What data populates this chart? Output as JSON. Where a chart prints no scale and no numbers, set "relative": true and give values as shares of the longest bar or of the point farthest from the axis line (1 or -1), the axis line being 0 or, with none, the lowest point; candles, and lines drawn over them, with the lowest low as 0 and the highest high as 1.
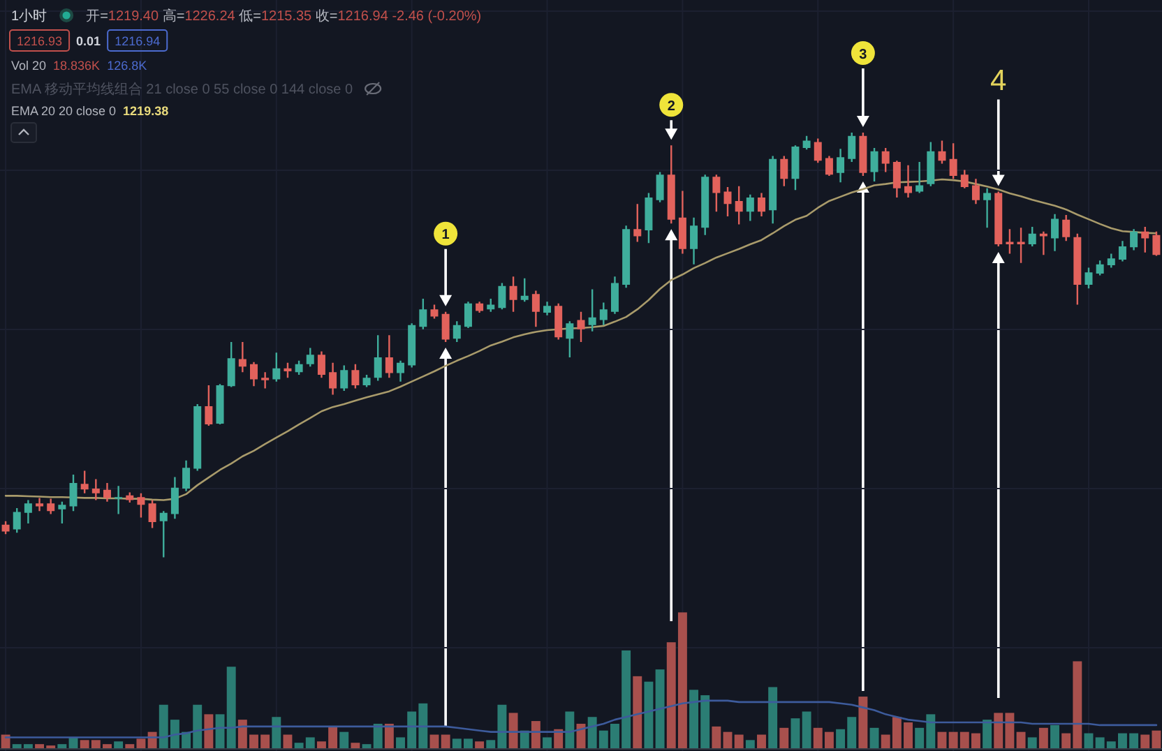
{
  "chart_data": [
    {
      "type": "candlestick",
      "title": "1小时",
      "relative": true,
      "grid": true,
      "categories": [
        null,
        null,
        null,
        null,
        null,
        null,
        null,
        null,
        null,
        null,
        null,
        null,
        null,
        null,
        null,
        null,
        null,
        null,
        null,
        null,
        null,
        null,
        null,
        null,
        null,
        null,
        null,
        null,
        null,
        null,
        null,
        null,
        null,
        null,
        null,
        null,
        null,
        null,
        null,
        null,
        null,
        null,
        null,
        null,
        null,
        null,
        null,
        null,
        null,
        null,
        null,
        null,
        null,
        null,
        null,
        null,
        null,
        null,
        null,
        null,
        null,
        null,
        null,
        null,
        null,
        null,
        null,
        null,
        null,
        null,
        null,
        null,
        null,
        null,
        null,
        null,
        null,
        null,
        null,
        null,
        null,
        null,
        null,
        null,
        null,
        null,
        null,
        null,
        null,
        null,
        null,
        null,
        null,
        null,
        null,
        null,
        null,
        null,
        null,
        null,
        null,
        null,
        null
      ],
      "ohlc": [
        [
          0.077,
          0.085,
          0.055,
          0.061
        ],
        [
          0.066,
          0.116,
          0.058,
          0.107
        ],
        [
          0.105,
          0.135,
          0.08,
          0.127
        ],
        [
          0.127,
          0.14,
          0.109,
          0.12
        ],
        [
          0.127,
          0.138,
          0.102,
          0.109
        ],
        [
          0.113,
          0.131,
          0.08,
          0.124
        ],
        [
          0.12,
          0.195,
          0.109,
          0.175
        ],
        [
          0.173,
          0.204,
          0.151,
          0.16
        ],
        [
          0.162,
          0.184,
          0.135,
          0.151
        ],
        [
          0.159,
          0.175,
          0.131,
          0.14
        ],
        [
          0.138,
          0.168,
          0.102,
          0.142
        ],
        [
          0.146,
          0.153,
          0.129,
          0.135
        ],
        [
          0.142,
          0.151,
          0.094,
          0.124
        ],
        [
          0.127,
          0.135,
          0.069,
          0.083
        ],
        [
          0.085,
          0.109,
          0,
          0.105
        ],
        [
          0.102,
          0.189,
          0.091,
          0.164
        ],
        [
          0.162,
          0.228,
          0.156,
          0.211
        ],
        [
          0.209,
          0.361,
          0.204,
          0.356
        ],
        [
          0.356,
          0.405,
          0.31,
          0.313
        ],
        [
          0.315,
          0.408,
          0.313,
          0.405
        ],
        [
          0.403,
          0.507,
          0.401,
          0.469
        ],
        [
          0.467,
          0.507,
          0.436,
          0.449
        ],
        [
          0.455,
          0.46,
          0.403,
          0.419
        ],
        [
          0.423,
          0.436,
          0.398,
          0.417
        ],
        [
          0.419,
          0.482,
          0.414,
          0.445
        ],
        [
          0.445,
          0.458,
          0.423,
          0.438
        ],
        [
          0.436,
          0.463,
          0.43,
          0.455
        ],
        [
          0.455,
          0.493,
          0.449,
          0.477
        ],
        [
          0.477,
          0.485,
          0.423,
          0.43
        ],
        [
          0.436,
          0.458,
          0.383,
          0.398
        ],
        [
          0.398,
          0.452,
          0.392,
          0.441
        ],
        [
          0.441,
          0.455,
          0.398,
          0.405
        ],
        [
          0.405,
          0.43,
          0.401,
          0.423
        ],
        [
          0.423,
          0.523,
          0.416,
          0.471
        ],
        [
          0.471,
          0.523,
          0.423,
          0.434
        ],
        [
          0.434,
          0.463,
          0.414,
          0.458
        ],
        [
          0.452,
          0.551,
          0.447,
          0.547
        ],
        [
          0.543,
          0.609,
          0.537,
          0.584
        ],
        [
          0.584,
          0.595,
          0.562,
          0.567
        ],
        [
          0.573,
          0.578,
          0.507,
          0.513
        ],
        [
          0.515,
          0.556,
          0.507,
          0.547
        ],
        [
          0.543,
          0.602,
          0.54,
          0.598
        ],
        [
          0.598,
          0.602,
          0.576,
          0.58
        ],
        [
          0.584,
          0.609,
          0.578,
          0.595
        ],
        [
          0.587,
          0.646,
          0.584,
          0.639
        ],
        [
          0.639,
          0.661,
          0.578,
          0.606
        ],
        [
          0.606,
          0.657,
          0.602,
          0.616
        ],
        [
          0.62,
          0.628,
          0.543,
          0.578
        ],
        [
          0.576,
          0.602,
          0.57,
          0.592
        ],
        [
          0.592,
          0.598,
          0.513,
          0.518
        ],
        [
          0.515,
          0.556,
          0.471,
          0.551
        ],
        [
          0.559,
          0.578,
          0.507,
          0.537
        ],
        [
          0.547,
          0.631,
          0.532,
          0.565
        ],
        [
          0.559,
          0.6,
          0.547,
          0.584
        ],
        [
          0.578,
          0.661,
          0.573,
          0.646
        ],
        [
          0.642,
          0.781,
          0.635,
          0.773
        ],
        [
          0.773,
          0.832,
          0.743,
          0.756
        ],
        [
          0.77,
          0.858,
          0.74,
          0.847
        ],
        [
          0.841,
          0.907,
          0.836,
          0.901
        ],
        [
          0.901,
          0.97,
          0.786,
          0.795
        ],
        [
          0.8,
          0.863,
          0.715,
          0.726
        ],
        [
          0.726,
          0.8,
          0.69,
          0.781
        ],
        [
          0.776,
          0.901,
          0.759,
          0.896
        ],
        [
          0.896,
          0.901,
          0.814,
          0.858
        ],
        [
          0.861,
          0.872,
          0.803,
          0.832
        ],
        [
          0.839,
          0.874,
          0.784,
          0.814
        ],
        [
          0.814,
          0.854,
          0.792,
          0.847
        ],
        [
          0.847,
          0.858,
          0.803,
          0.814
        ],
        [
          0.817,
          0.945,
          0.786,
          0.938
        ],
        [
          0.938,
          0.945,
          0.874,
          0.891
        ],
        [
          0.891,
          0.97,
          0.865,
          0.967
        ],
        [
          0.964,
          0.992,
          0.96,
          0.981
        ],
        [
          0.978,
          0.986,
          0.929,
          0.934
        ],
        [
          0.94,
          0.945,
          0.898,
          0.901
        ],
        [
          0.905,
          0.962,
          0.883,
          0.942
        ],
        [
          0.938,
          1,
          0.931,
          0.992
        ],
        [
          0.992,
          1,
          0.898,
          0.905
        ],
        [
          0.907,
          0.964,
          0.885,
          0.956
        ],
        [
          0.956,
          0.964,
          0.907,
          0.927
        ],
        [
          0.931,
          0.934,
          0.847,
          0.869
        ],
        [
          0.874,
          0.923,
          0.847,
          0.858
        ],
        [
          0.861,
          0.931,
          0.858,
          0.876
        ],
        [
          0.879,
          0.978,
          0.874,
          0.956
        ],
        [
          0.956,
          0.981,
          0.927,
          0.934
        ],
        [
          0.938,
          0.975,
          0.891,
          0.898
        ],
        [
          0.901,
          0.912,
          0.869,
          0.872
        ],
        [
          0.876,
          0.891,
          0.832,
          0.841
        ],
        [
          0.841,
          0.869,
          0.776,
          0.858
        ],
        [
          0.858,
          0.861,
          0.732,
          0.737
        ],
        [
          0.743,
          0.773,
          0.715,
          0.737
        ],
        [
          0.743,
          0.776,
          0.693,
          0.737
        ],
        [
          0.737,
          0.778,
          0.732,
          0.762
        ],
        [
          0.762,
          0.767,
          0.712,
          0.756
        ],
        [
          0.751,
          0.808,
          0.721,
          0.797
        ],
        [
          0.795,
          0.806,
          0.745,
          0.754
        ],
        [
          0.754,
          0.762,
          0.595,
          0.642
        ],
        [
          0.642,
          0.682,
          0.633,
          0.671
        ],
        [
          0.668,
          0.699,
          0.664,
          0.69
        ],
        [
          0.688,
          0.715,
          0.682,
          0.704
        ],
        [
          0.701,
          0.745,
          0.697,
          0.732
        ],
        [
          0.73,
          0.773,
          0.723,
          0.767
        ],
        [
          0.767,
          0.778,
          0.718,
          0.751
        ],
        [
          0.759,
          0.767,
          0.71,
          0.712
        ]
      ],
      "colors": [
        "#e2625c",
        "#3fae9c",
        "#3fae9c",
        "#e2625c",
        "#e2625c",
        "#3fae9c",
        "#3fae9c",
        "#e2625c",
        "#e2625c",
        "#e2625c",
        "#3fae9c",
        "#e2625c",
        "#e2625c",
        "#e2625c",
        "#3fae9c",
        "#3fae9c",
        "#3fae9c",
        "#3fae9c",
        "#e2625c",
        "#3fae9c",
        "#3fae9c",
        "#e2625c",
        "#e2625c",
        "#e2625c",
        "#3fae9c",
        "#e2625c",
        "#3fae9c",
        "#3fae9c",
        "#e2625c",
        "#e2625c",
        "#3fae9c",
        "#e2625c",
        "#3fae9c",
        "#3fae9c",
        "#e2625c",
        "#3fae9c",
        "#3fae9c",
        "#3fae9c",
        "#e2625c",
        "#e2625c",
        "#3fae9c",
        "#3fae9c",
        "#e2625c",
        "#3fae9c",
        "#3fae9c",
        "#e2625c",
        "#3fae9c",
        "#e2625c",
        "#3fae9c",
        "#e2625c",
        "#3fae9c",
        "#e2625c",
        "#3fae9c",
        "#3fae9c",
        "#3fae9c",
        "#3fae9c",
        "#e2625c",
        "#3fae9c",
        "#3fae9c",
        "#e2625c",
        "#e2625c",
        "#3fae9c",
        "#3fae9c",
        "#e2625c",
        "#e2625c",
        "#e2625c",
        "#3fae9c",
        "#e2625c",
        "#3fae9c",
        "#e2625c",
        "#3fae9c",
        "#3fae9c",
        "#e2625c",
        "#e2625c",
        "#3fae9c",
        "#3fae9c",
        "#e2625c",
        "#3fae9c",
        "#e2625c",
        "#e2625c",
        "#e2625c",
        "#3fae9c",
        "#3fae9c",
        "#e2625c",
        "#e2625c",
        "#e2625c",
        "#e2625c",
        "#3fae9c",
        "#e2625c",
        "#e2625c",
        "#e2625c",
        "#3fae9c",
        "#e2625c",
        "#3fae9c",
        "#e2625c",
        "#e2625c",
        "#3fae9c",
        "#3fae9c",
        "#3fae9c",
        "#3fae9c",
        "#3fae9c",
        "#e2625c",
        "#e2625c"
      ],
      "series": [
        {
          "type": "line",
          "color": "#a99b6b",
          "values": [
            0.145,
            0.145,
            0.144,
            0.143,
            0.142,
            0.142,
            0.141,
            0.14,
            0.14,
            0.139,
            0.139,
            0.138,
            0.138,
            0.136,
            0.135,
            0.138,
            0.149,
            0.17,
            0.188,
            0.206,
            0.221,
            0.238,
            0.251,
            0.267,
            0.282,
            0.297,
            0.313,
            0.328,
            0.344,
            0.354,
            0.361,
            0.369,
            0.377,
            0.384,
            0.391,
            0.402,
            0.414,
            0.426,
            0.438,
            0.451,
            0.463,
            0.474,
            0.486,
            0.499,
            0.508,
            0.518,
            0.525,
            0.531,
            0.535,
            0.537,
            0.539,
            0.54,
            0.542,
            0.545,
            0.555,
            0.566,
            0.584,
            0.606,
            0.632,
            0.653,
            0.666,
            0.681,
            0.693,
            0.706,
            0.716,
            0.726,
            0.737,
            0.747,
            0.763,
            0.78,
            0.795,
            0.804,
            0.823,
            0.839,
            0.849,
            0.859,
            0.867,
            0.876,
            0.879,
            0.883,
            0.884,
            0.885,
            0.887,
            0.89,
            0.888,
            0.885,
            0.879,
            0.873,
            0.866,
            0.857,
            0.85,
            0.842,
            0.835,
            0.828,
            0.819,
            0.807,
            0.796,
            0.785,
            0.775,
            0.768,
            0.766,
            0.764,
            0.763
          ]
        }
      ],
      "annotations": [
        "开=1219.40 高=1226.24 低=1215.35 收=1216.94 -2.46 (-0.20%)",
        "1216.93",
        "0.01",
        "1216.94",
        "Vol 20",
        "18.836K",
        "126.8K",
        "EMA 移动平均线组合 21 close 0 55 close 0 144 close 0",
        "EMA 20 20 close 0",
        "1219.38",
        "1",
        "2",
        "3",
        "4"
      ]
    },
    {
      "type": "bar",
      "relative": true,
      "grid": true,
      "categories": [
        null,
        null,
        null,
        null,
        null,
        null,
        null,
        null,
        null,
        null,
        null,
        null,
        null,
        null,
        null,
        null,
        null,
        null,
        null,
        null,
        null,
        null,
        null,
        null,
        null,
        null,
        null,
        null,
        null,
        null,
        null,
        null,
        null,
        null,
        null,
        null,
        null,
        null,
        null,
        null,
        null,
        null,
        null,
        null,
        null,
        null,
        null,
        null,
        null,
        null,
        null,
        null,
        null,
        null,
        null,
        null,
        null,
        null,
        null,
        null,
        null,
        null,
        null,
        null,
        null,
        null,
        null,
        null,
        null,
        null,
        null,
        null,
        null,
        null,
        null,
        null,
        null,
        null,
        null,
        null,
        null,
        null,
        null,
        null,
        null,
        null,
        null,
        null,
        null,
        null,
        null,
        null,
        null,
        null,
        null,
        null,
        null,
        null,
        null,
        null,
        null,
        null,
        null
      ],
      "series": [
        {
          "type": "bar",
          "values": [
            0.1,
            0.03,
            0.03,
            0.03,
            0.02,
            0.03,
            0.08,
            0.06,
            0.06,
            0.03,
            0.05,
            0.03,
            0.07,
            0.12,
            0.32,
            0.21,
            0.12,
            0.32,
            0.25,
            0.25,
            0.6,
            0.21,
            0.1,
            0.1,
            0.23,
            0.1,
            0.04,
            0.08,
            0.05,
            0.16,
            0.12,
            0.04,
            0.03,
            0.18,
            0.18,
            0.08,
            0.27,
            0.33,
            0.1,
            0.1,
            0.07,
            0.07,
            0.05,
            0.06,
            0.32,
            0.26,
            0.13,
            0.2,
            0.08,
            0.14,
            0.27,
            0.18,
            0.23,
            0.13,
            0.18,
            0.72,
            0.53,
            0.49,
            0.58,
            0.78,
            1,
            0.43,
            0.39,
            0.16,
            0.12,
            0.1,
            0.06,
            0.1,
            0.45,
            0.15,
            0.22,
            0.27,
            0.15,
            0.12,
            0.14,
            0.23,
            0.38,
            0.15,
            0.1,
            0.23,
            0.19,
            0.15,
            0.25,
            0.12,
            0.12,
            0.12,
            0.11,
            0.21,
            0.26,
            0.26,
            0.12,
            0.08,
            0.15,
            0.17,
            0.11,
            0.64,
            0.11,
            0.08,
            0.05,
            0.11,
            0.11,
            0.1,
            0.13
          ],
          "colors": [
            "#a8504d",
            "#2b7d74",
            "#2b7d74",
            "#a8504d",
            "#a8504d",
            "#2b7d74",
            "#2b7d74",
            "#a8504d",
            "#a8504d",
            "#a8504d",
            "#2b7d74",
            "#a8504d",
            "#a8504d",
            "#a8504d",
            "#2b7d74",
            "#2b7d74",
            "#2b7d74",
            "#2b7d74",
            "#a8504d",
            "#2b7d74",
            "#2b7d74",
            "#a8504d",
            "#a8504d",
            "#a8504d",
            "#2b7d74",
            "#a8504d",
            "#2b7d74",
            "#2b7d74",
            "#a8504d",
            "#a8504d",
            "#2b7d74",
            "#a8504d",
            "#2b7d74",
            "#2b7d74",
            "#a8504d",
            "#2b7d74",
            "#2b7d74",
            "#2b7d74",
            "#a8504d",
            "#a8504d",
            "#2b7d74",
            "#2b7d74",
            "#a8504d",
            "#2b7d74",
            "#2b7d74",
            "#a8504d",
            "#2b7d74",
            "#a8504d",
            "#2b7d74",
            "#a8504d",
            "#2b7d74",
            "#a8504d",
            "#2b7d74",
            "#2b7d74",
            "#2b7d74",
            "#2b7d74",
            "#a8504d",
            "#2b7d74",
            "#2b7d74",
            "#a8504d",
            "#a8504d",
            "#2b7d74",
            "#2b7d74",
            "#a8504d",
            "#a8504d",
            "#a8504d",
            "#2b7d74",
            "#a8504d",
            "#2b7d74",
            "#a8504d",
            "#2b7d74",
            "#2b7d74",
            "#a8504d",
            "#a8504d",
            "#2b7d74",
            "#2b7d74",
            "#a8504d",
            "#2b7d74",
            "#a8504d",
            "#a8504d",
            "#a8504d",
            "#2b7d74",
            "#2b7d74",
            "#a8504d",
            "#a8504d",
            "#a8504d",
            "#a8504d",
            "#2b7d74",
            "#a8504d",
            "#a8504d",
            "#a8504d",
            "#2b7d74",
            "#a8504d",
            "#2b7d74",
            "#a8504d",
            "#a8504d",
            "#2b7d74",
            "#2b7d74",
            "#2b7d74",
            "#2b7d74",
            "#2b7d74",
            "#a8504d",
            "#a8504d"
          ]
        },
        {
          "type": "line",
          "color": "#3d5b9c",
          "values": [
            0.08,
            0.08,
            0.08,
            0.08,
            0.08,
            0.08,
            0.08,
            0.08,
            0.08,
            0.08,
            0.08,
            0.08,
            0.08,
            0.08,
            0.08,
            0.1,
            0.11,
            0.13,
            0.14,
            0.15,
            0.15,
            0.16,
            0.16,
            0.16,
            0.16,
            0.16,
            0.16,
            0.16,
            0.16,
            0.16,
            0.16,
            0.16,
            0.16,
            0.16,
            0.16,
            0.16,
            0.16,
            0.16,
            0.16,
            0.16,
            0.15,
            0.14,
            0.13,
            0.12,
            0.12,
            0.12,
            0.12,
            0.12,
            0.12,
            0.12,
            0.12,
            0.14,
            0.16,
            0.18,
            0.21,
            0.23,
            0.25,
            0.27,
            0.29,
            0.31,
            0.33,
            0.34,
            0.35,
            0.35,
            0.35,
            0.34,
            0.34,
            0.34,
            0.34,
            0.34,
            0.34,
            0.34,
            0.34,
            0.34,
            0.33,
            0.32,
            0.3,
            0.28,
            0.25,
            0.23,
            0.21,
            0.2,
            0.19,
            0.19,
            0.19,
            0.19,
            0.19,
            0.19,
            0.19,
            0.19,
            0.19,
            0.18,
            0.18,
            0.18,
            0.18,
            0.18,
            0.18,
            0.17,
            0.17,
            0.17,
            0.17,
            0.17,
            0.17
          ]
        }
      ]
    }
  ]
}
